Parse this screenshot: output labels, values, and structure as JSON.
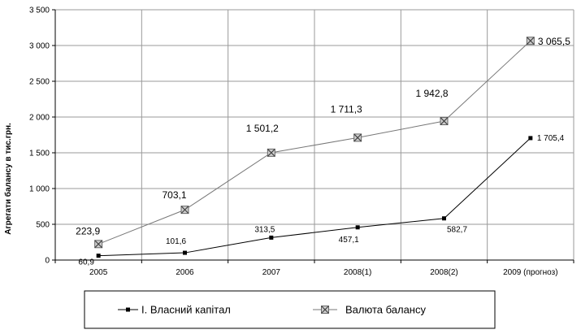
{
  "chart_data": {
    "type": "line",
    "ylabel": "Агрегати балансу в тис.грн.",
    "xlabel": "",
    "ylim": [
      0,
      3500
    ],
    "yticks": [
      0,
      500,
      1000,
      1500,
      2000,
      2500,
      3000,
      3500
    ],
    "ytick_labels": [
      "0",
      "500",
      "1 000",
      "1 500",
      "2 000",
      "2 500",
      "3 000",
      "3 500"
    ],
    "categories": [
      "2005",
      "2006",
      "2007",
      "2008(1)",
      "2008(2)",
      "2009 (прогноз)"
    ],
    "grid": "vertical-and-horizontal",
    "legend": "bottom",
    "series": [
      {
        "name": "I. Власний капітал",
        "marker": "square",
        "color": "#000000",
        "values": [
          60.9,
          101.6,
          313.5,
          457.1,
          582.7,
          1705.4
        ],
        "labels": [
          "60,9",
          "101,6",
          "313,5",
          "457,1",
          "582,7",
          "1 705,4"
        ]
      },
      {
        "name": "Валюта балансу",
        "marker": "x-square",
        "color": "#555555",
        "values": [
          223.9,
          703.1,
          1501.2,
          1711.3,
          1942.8,
          3065.5
        ],
        "labels": [
          "223,9",
          "703,1",
          "1 501,2",
          "1 711,3",
          "1 942,8",
          "3 065,5"
        ]
      }
    ]
  }
}
